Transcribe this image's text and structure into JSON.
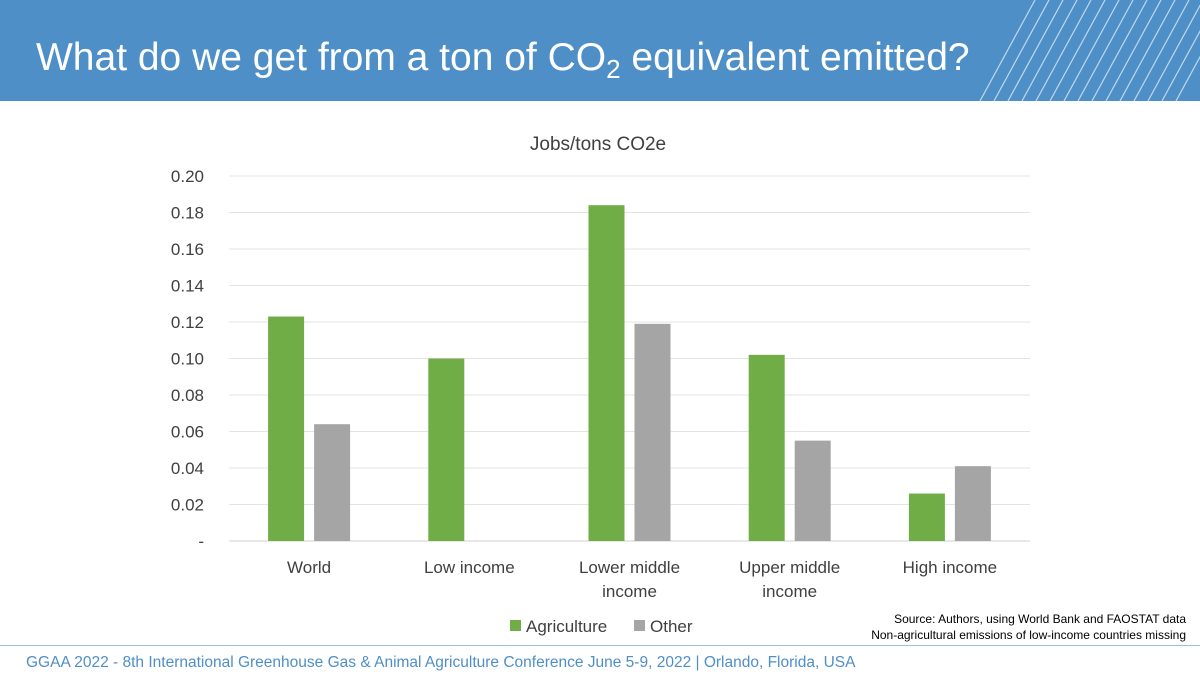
{
  "slide": {
    "title_main": "What do we get from a ton of CO",
    "title_sub": "2",
    "title_end": " equivalent emitted?",
    "header_color": "#4f8fc7",
    "footer": "GGAA 2022 - 8th International Greenhouse Gas & Animal Agriculture Conference June 5-9, 2022 | Orlando, Florida, USA",
    "source_line1": "Source: Authors, using World Bank and FAOSTAT data",
    "source_line2": "Non-agricultural emissions of low-income countries missing"
  },
  "chart_data": {
    "type": "bar",
    "title": "Jobs/tons CO2e",
    "categories": [
      [
        "World"
      ],
      [
        "Low income"
      ],
      [
        "Lower middle",
        "income"
      ],
      [
        "Upper middle",
        "income"
      ],
      [
        "High income"
      ]
    ],
    "series": [
      {
        "name": "Agriculture",
        "color": "#70ad47",
        "values": [
          0.123,
          0.1,
          0.184,
          0.102,
          0.026
        ]
      },
      {
        "name": "Other",
        "color": "#a5a5a5",
        "values": [
          0.064,
          null,
          0.119,
          0.055,
          0.041
        ]
      }
    ],
    "ylim": [
      0,
      0.2
    ],
    "yticks": [
      "-",
      "0.02",
      "0.04",
      "0.06",
      "0.08",
      "0.10",
      "0.12",
      "0.14",
      "0.16",
      "0.18",
      "0.20"
    ],
    "grid": true,
    "legend_position": "bottom"
  }
}
